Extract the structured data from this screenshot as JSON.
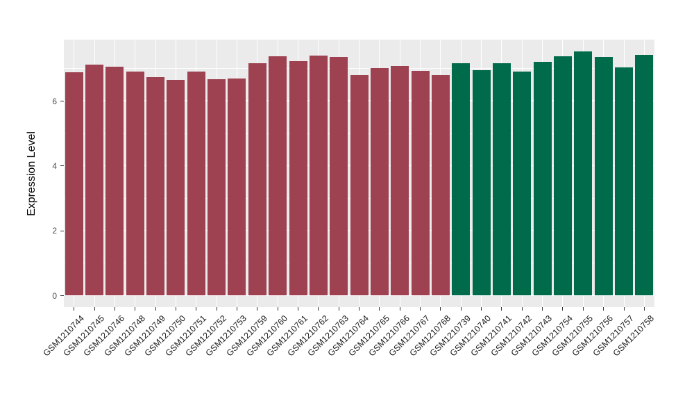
{
  "chart": {
    "panel_background": "#EBEBEB",
    "grid_color": "#FFFFFF",
    "tick_color": "#333333",
    "axis_text_color": "#4D4D4D"
  },
  "chart_data": {
    "type": "bar",
    "title": "",
    "xlabel": "",
    "ylabel": "Expression Level",
    "yticks": [
      0,
      2,
      4,
      6
    ],
    "yminor": [
      1,
      3,
      5,
      7
    ],
    "ylim": [
      -0.4,
      7.9
    ],
    "grid": true,
    "legend": false,
    "categories": [
      "GSM1210744",
      "GSM1210745",
      "GSM1210746",
      "GSM1210748",
      "GSM1210749",
      "GSM1210750",
      "GSM1210751",
      "GSM1210752",
      "GSM1210753",
      "GSM1210759",
      "GSM1210760",
      "GSM1210761",
      "GSM1210762",
      "GSM1210763",
      "GSM1210764",
      "GSM1210765",
      "GSM1210766",
      "GSM1210767",
      "GSM1210768",
      "GSM1210739",
      "GSM1210740",
      "GSM1210741",
      "GSM1210742",
      "GSM1210743",
      "GSM1210754",
      "GSM1210755",
      "GSM1210756",
      "GSM1210757",
      "GSM1210758"
    ],
    "values": [
      6.88,
      7.12,
      7.05,
      6.91,
      6.73,
      6.64,
      6.91,
      6.66,
      6.69,
      7.15,
      7.38,
      7.22,
      7.39,
      7.36,
      6.8,
      7.0,
      7.07,
      6.93,
      6.79,
      7.16,
      6.95,
      7.16,
      6.91,
      7.19,
      7.38,
      7.52,
      7.34,
      7.03,
      7.41
    ],
    "bar_groups": [
      "group1",
      "group1",
      "group1",
      "group1",
      "group1",
      "group1",
      "group1",
      "group1",
      "group1",
      "group1",
      "group1",
      "group1",
      "group1",
      "group1",
      "group1",
      "group1",
      "group1",
      "group1",
      "group1",
      "group2",
      "group2",
      "group2",
      "group2",
      "group2",
      "group2",
      "group2",
      "group2",
      "group2",
      "group2"
    ],
    "group_colors": {
      "group1": "#9E4151",
      "group2": "#006B4A"
    }
  }
}
